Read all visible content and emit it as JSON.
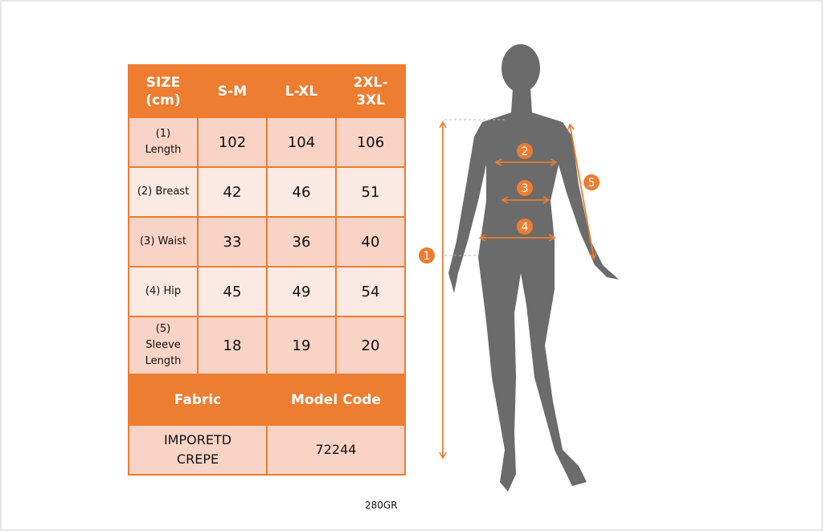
{
  "table": {
    "headers": [
      "SIZE (cm)",
      "S-M",
      "L-XL",
      "2XL-3XL"
    ],
    "rows": [
      {
        "label": "(1) Length",
        "values": [
          "102",
          "104",
          "106"
        ]
      },
      {
        "label": "(2) Breast",
        "values": [
          "42",
          "46",
          "51"
        ]
      },
      {
        "label": "(3) Waist",
        "values": [
          "33",
          "36",
          "40"
        ]
      },
      {
        "label": "(4) Hip",
        "values": [
          "45",
          "49",
          "54"
        ]
      },
      {
        "label": "(5) Sleeve Length",
        "values": [
          "18",
          "19",
          "20"
        ]
      }
    ],
    "footer_headers": [
      "Fabric",
      "Model Code"
    ],
    "footer_values": [
      "IMPORETD CREPE",
      "72244"
    ]
  },
  "diagram": {
    "markers": [
      "1",
      "2",
      "3",
      "4",
      "5"
    ]
  },
  "weight": "280GR",
  "colors": {
    "accent": "#ED7D31",
    "row_dark": "#F8D3C6",
    "row_light": "#FBE9E3",
    "silhouette": "#6b6b6b"
  }
}
